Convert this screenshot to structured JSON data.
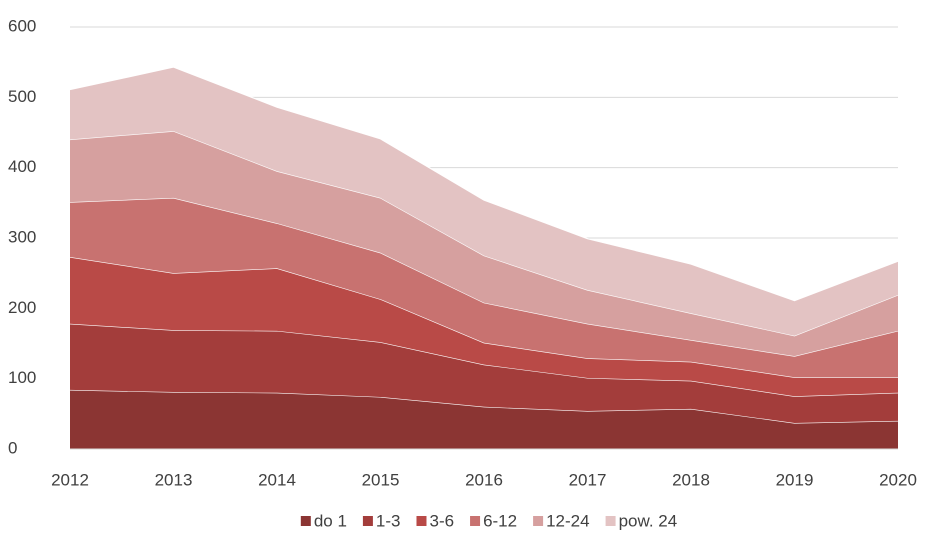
{
  "chart_data": {
    "type": "stacked_area",
    "categories": [
      "2012",
      "2013",
      "2014",
      "2015",
      "2016",
      "2017",
      "2018",
      "2019",
      "2020"
    ],
    "series": [
      {
        "name": "do 1",
        "color": "#8b3533",
        "values": [
          84,
          81,
          80,
          74,
          60,
          54,
          57,
          37,
          40
        ]
      },
      {
        "name": "1-3",
        "color": "#a33d3b",
        "values": [
          94,
          88,
          88,
          78,
          60,
          47,
          40,
          38,
          40
        ]
      },
      {
        "name": "3-6",
        "color": "#b94a47",
        "values": [
          95,
          81,
          89,
          61,
          31,
          28,
          27,
          27,
          22
        ]
      },
      {
        "name": "6-12",
        "color": "#c87270",
        "values": [
          78,
          107,
          64,
          66,
          57,
          49,
          31,
          30,
          66
        ]
      },
      {
        "name": "12-24",
        "color": "#d6a09f",
        "values": [
          89,
          95,
          74,
          78,
          67,
          48,
          38,
          29,
          51
        ]
      },
      {
        "name": "pow. 24",
        "color": "#e3c3c3",
        "values": [
          71,
          91,
          91,
          84,
          79,
          73,
          70,
          50,
          48
        ]
      }
    ],
    "ylim": [
      0,
      600
    ],
    "yticks": [
      0,
      100,
      200,
      300,
      400,
      500,
      600
    ],
    "grid": true,
    "legend": "bottom"
  }
}
